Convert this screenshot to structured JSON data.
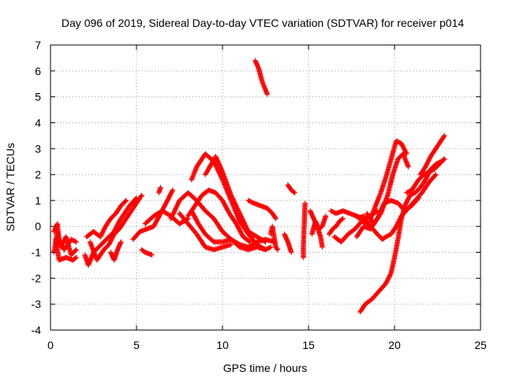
{
  "chart_data": {
    "type": "scatter",
    "title": "Day 096 of 2019, Sidereal Day-to-day VTEC variation (SDTVAR) for receiver p014",
    "xlabel": "GPS time / hours",
    "ylabel": "SDTVAR / TECUs",
    "xlim": [
      0,
      25
    ],
    "ylim": [
      -4,
      7
    ],
    "xticks": [
      0,
      5,
      10,
      15,
      20,
      25
    ],
    "yticks": [
      -4,
      -3,
      -2,
      -1,
      0,
      1,
      2,
      3,
      4,
      5,
      6,
      7
    ],
    "grid": true,
    "legend": "none",
    "marker": "+",
    "colors": {
      "series": "#ff0000",
      "grid": "#a0a0a0",
      "axis": "#000000"
    },
    "series": [
      {
        "name": "SDTVAR",
        "segments": [
          [
            [
              0.2,
              -1.0
            ],
            [
              0.4,
              -0.2
            ],
            [
              0.6,
              -0.8
            ],
            [
              0.9,
              -0.4
            ],
            [
              1.2,
              -1.1
            ],
            [
              1.5,
              -0.9
            ]
          ],
          [
            [
              0.3,
              -0.5
            ],
            [
              0.5,
              -1.3
            ],
            [
              0.9,
              -1.2
            ],
            [
              1.3,
              -1.3
            ],
            [
              1.5,
              -1.2
            ]
          ],
          [
            [
              0.2,
              -0.2
            ],
            [
              0.4,
              0.1
            ],
            [
              0.5,
              -0.6
            ],
            [
              0.8,
              -0.9
            ],
            [
              1.2,
              -0.5
            ],
            [
              1.5,
              -0.6
            ]
          ],
          [
            [
              2.0,
              -1.1
            ],
            [
              2.2,
              -1.5
            ],
            [
              2.5,
              -1.0
            ],
            [
              2.8,
              -0.8
            ],
            [
              3.1,
              -0.6
            ],
            [
              3.4,
              -0.4
            ],
            [
              3.7,
              -0.2
            ],
            [
              4.0,
              0.2
            ],
            [
              4.3,
              0.5
            ],
            [
              4.6,
              0.8
            ],
            [
              5.0,
              1.1
            ]
          ],
          [
            [
              2.3,
              -0.6
            ],
            [
              2.7,
              -1.3
            ],
            [
              3.1,
              -0.9
            ],
            [
              3.4,
              -0.7
            ],
            [
              3.7,
              -0.3
            ],
            [
              4.0,
              -0.1
            ],
            [
              4.3,
              0.2
            ],
            [
              4.7,
              0.6
            ],
            [
              5.0,
              0.9
            ],
            [
              5.3,
              1.2
            ]
          ],
          [
            [
              2.1,
              -0.4
            ],
            [
              2.5,
              -0.2
            ],
            [
              2.9,
              -0.4
            ],
            [
              3.2,
              0.0
            ],
            [
              3.5,
              0.3
            ],
            [
              3.8,
              0.5
            ],
            [
              4.1,
              0.8
            ],
            [
              4.4,
              1.0
            ]
          ],
          [
            [
              3.5,
              -1.0
            ],
            [
              3.7,
              -1.3
            ],
            [
              3.9,
              -0.9
            ],
            [
              4.1,
              -0.6
            ]
          ],
          [
            [
              5.3,
              -0.9
            ],
            [
              5.5,
              -1.0
            ],
            [
              5.9,
              -1.1
            ]
          ],
          [
            [
              4.8,
              -0.5
            ],
            [
              5.2,
              -0.2
            ],
            [
              5.6,
              -0.1
            ],
            [
              6.0,
              0.0
            ],
            [
              6.4,
              0.5
            ],
            [
              6.8,
              1.0
            ],
            [
              7.1,
              1.4
            ]
          ],
          [
            [
              5.5,
              0.1
            ],
            [
              6.0,
              0.4
            ],
            [
              6.5,
              0.6
            ],
            [
              7.0,
              0.4
            ],
            [
              7.5,
              0.1
            ],
            [
              8.0,
              0.3
            ]
          ],
          [
            [
              6.3,
              1.3
            ],
            [
              6.4,
              1.5
            ]
          ],
          [
            [
              7.0,
              0.3
            ],
            [
              7.5,
              1.0
            ],
            [
              8.0,
              1.3
            ],
            [
              8.5,
              1.0
            ],
            [
              9.0,
              0.6
            ],
            [
              9.5,
              0.3
            ],
            [
              10.0,
              -0.2
            ],
            [
              10.5,
              -0.5
            ],
            [
              11.0,
              -0.7
            ],
            [
              11.5,
              -0.8
            ],
            [
              12.0,
              -0.6
            ],
            [
              12.5,
              -0.5
            ],
            [
              13.0,
              -0.6
            ]
          ],
          [
            [
              7.5,
              0.5
            ],
            [
              8.0,
              0.1
            ],
            [
              8.5,
              -0.3
            ],
            [
              9.0,
              -0.8
            ],
            [
              9.5,
              -0.9
            ],
            [
              10.0,
              -0.8
            ],
            [
              10.5,
              -0.7
            ]
          ],
          [
            [
              8.2,
              0.6
            ],
            [
              8.6,
              0.1
            ],
            [
              9.0,
              -0.3
            ],
            [
              9.5,
              -0.6
            ],
            [
              10.0,
              -0.6
            ],
            [
              10.5,
              -0.5
            ],
            [
              11.0,
              -0.8
            ],
            [
              11.5,
              -0.9
            ],
            [
              12.0,
              -0.8
            ],
            [
              12.5,
              -0.9
            ],
            [
              12.8,
              -0.8
            ]
          ],
          [
            [
              8.0,
              0.4
            ],
            [
              8.4,
              0.8
            ],
            [
              8.8,
              1.2
            ],
            [
              9.2,
              1.4
            ],
            [
              9.6,
              1.3
            ],
            [
              10.0,
              1.0
            ],
            [
              10.4,
              0.5
            ],
            [
              10.8,
              0.1
            ],
            [
              11.2,
              -0.4
            ],
            [
              11.6,
              -0.6
            ]
          ],
          [
            [
              8.2,
              1.8
            ],
            [
              8.5,
              2.3
            ],
            [
              9.0,
              2.8
            ],
            [
              9.5,
              2.5
            ],
            [
              10.0,
              1.8
            ],
            [
              10.5,
              1.0
            ],
            [
              11.0,
              0.2
            ],
            [
              11.5,
              -0.3
            ],
            [
              12.0,
              -0.7
            ],
            [
              12.5,
              -0.9
            ]
          ],
          [
            [
              9.0,
              2.0
            ],
            [
              9.6,
              2.7
            ],
            [
              10.0,
              2.1
            ],
            [
              10.5,
              1.2
            ],
            [
              11.0,
              0.5
            ],
            [
              11.5,
              -0.2
            ],
            [
              12.0,
              -0.4
            ],
            [
              12.5,
              -0.6
            ]
          ],
          [
            [
              11.5,
              1.0
            ],
            [
              11.8,
              0.9
            ],
            [
              12.2,
              0.8
            ],
            [
              12.6,
              0.7
            ],
            [
              12.9,
              0.5
            ],
            [
              13.1,
              0.3
            ]
          ],
          [
            [
              12.8,
              -0.3
            ],
            [
              12.9,
              0.0
            ],
            [
              13.0,
              -0.4
            ],
            [
              13.1,
              -0.8
            ],
            [
              13.2,
              -0.9
            ]
          ],
          [
            [
              11.9,
              6.4
            ],
            [
              12.1,
              6.1
            ],
            [
              12.3,
              5.6
            ],
            [
              12.6,
              5.1
            ]
          ],
          [
            [
              13.8,
              1.6
            ],
            [
              14.0,
              1.4
            ],
            [
              14.2,
              1.3
            ]
          ],
          [
            [
              13.6,
              -0.3
            ],
            [
              13.8,
              -0.6
            ],
            [
              14.0,
              -1.0
            ]
          ],
          [
            [
              14.7,
              -1.2
            ],
            [
              14.7,
              -0.8
            ],
            [
              14.8,
              0.9
            ]
          ],
          [
            [
              15.1,
              0.6
            ],
            [
              15.3,
              0.3
            ],
            [
              15.5,
              0.0
            ],
            [
              15.7,
              -0.4
            ],
            [
              15.8,
              -0.8
            ]
          ],
          [
            [
              15.2,
              -0.3
            ],
            [
              15.4,
              0.2
            ],
            [
              15.6,
              -0.1
            ],
            [
              15.8,
              0.0
            ],
            [
              16.0,
              0.4
            ]
          ],
          [
            [
              16.2,
              -0.3
            ],
            [
              16.4,
              -0.1
            ],
            [
              16.6,
              0.0
            ],
            [
              16.8,
              0.2
            ],
            [
              17.0,
              0.3
            ]
          ],
          [
            [
              16.3,
              0.6
            ],
            [
              16.6,
              0.5
            ],
            [
              17.0,
              0.6
            ],
            [
              17.4,
              0.5
            ],
            [
              17.8,
              0.4
            ],
            [
              18.2,
              0.3
            ],
            [
              18.6,
              0.4
            ],
            [
              19.0,
              0.6
            ]
          ],
          [
            [
              16.5,
              -0.4
            ],
            [
              16.9,
              -0.6
            ],
            [
              17.3,
              -0.3
            ],
            [
              17.7,
              -0.1
            ],
            [
              18.1,
              0.2
            ],
            [
              18.4,
              0.1
            ]
          ],
          [
            [
              18.6,
              0.3
            ],
            [
              18.9,
              0.8
            ],
            [
              19.2,
              1.3
            ],
            [
              19.5,
              1.9
            ],
            [
              19.8,
              2.6
            ],
            [
              20.1,
              3.3
            ],
            [
              20.4,
              3.2
            ],
            [
              20.7,
              2.8
            ]
          ],
          [
            [
              18.4,
              0.5
            ],
            [
              18.8,
              0.1
            ],
            [
              19.2,
              0.5
            ],
            [
              19.6,
              1.2
            ],
            [
              19.9,
              2.0
            ],
            [
              20.2,
              2.6
            ],
            [
              20.5,
              2.8
            ],
            [
              20.8,
              2.3
            ]
          ],
          [
            [
              17.8,
              -0.4
            ],
            [
              18.2,
              0.0
            ],
            [
              18.6,
              -0.1
            ],
            [
              19.0,
              0.3
            ],
            [
              19.4,
              0.9
            ],
            [
              19.8,
              1.0
            ],
            [
              20.2,
              0.9
            ],
            [
              20.6,
              0.6
            ],
            [
              21.0,
              0.8
            ],
            [
              21.4,
              1.1
            ]
          ],
          [
            [
              17.9,
              0.3
            ],
            [
              18.2,
              0.4
            ],
            [
              18.6,
              0.0
            ],
            [
              19.0,
              -0.3
            ],
            [
              19.3,
              -0.5
            ],
            [
              19.5,
              -0.4
            ],
            [
              19.8,
              -0.3
            ],
            [
              20.1,
              0.0
            ],
            [
              20.4,
              0.4
            ],
            [
              20.8,
              0.7
            ],
            [
              21.2,
              1.0
            ],
            [
              21.6,
              1.3
            ],
            [
              22.0,
              1.7
            ],
            [
              22.4,
              2.0
            ]
          ],
          [
            [
              18.0,
              -3.3
            ],
            [
              18.3,
              -3.0
            ],
            [
              18.7,
              -2.8
            ],
            [
              19.1,
              -2.5
            ],
            [
              19.5,
              -2.2
            ],
            [
              19.8,
              -1.8
            ],
            [
              20.0,
              -1.2
            ],
            [
              20.2,
              -0.5
            ],
            [
              20.4,
              0.3
            ],
            [
              20.6,
              0.8
            ],
            [
              20.9,
              1.2
            ],
            [
              21.2,
              1.3
            ],
            [
              21.5,
              1.5
            ],
            [
              21.8,
              1.8
            ],
            [
              22.1,
              2.2
            ],
            [
              22.4,
              2.4
            ],
            [
              22.7,
              2.5
            ],
            [
              22.9,
              2.6
            ]
          ],
          [
            [
              20.7,
              1.3
            ],
            [
              21.0,
              1.4
            ],
            [
              21.4,
              1.8
            ],
            [
              21.7,
              2.0
            ],
            [
              22.0,
              2.1
            ],
            [
              22.3,
              2.2
            ],
            [
              22.6,
              2.4
            ],
            [
              22.9,
              2.6
            ]
          ],
          [
            [
              21.5,
              2.0
            ],
            [
              21.8,
              2.3
            ],
            [
              22.1,
              2.7
            ],
            [
              22.4,
              3.0
            ],
            [
              22.6,
              3.2
            ],
            [
              22.9,
              3.5
            ]
          ]
        ]
      }
    ]
  }
}
